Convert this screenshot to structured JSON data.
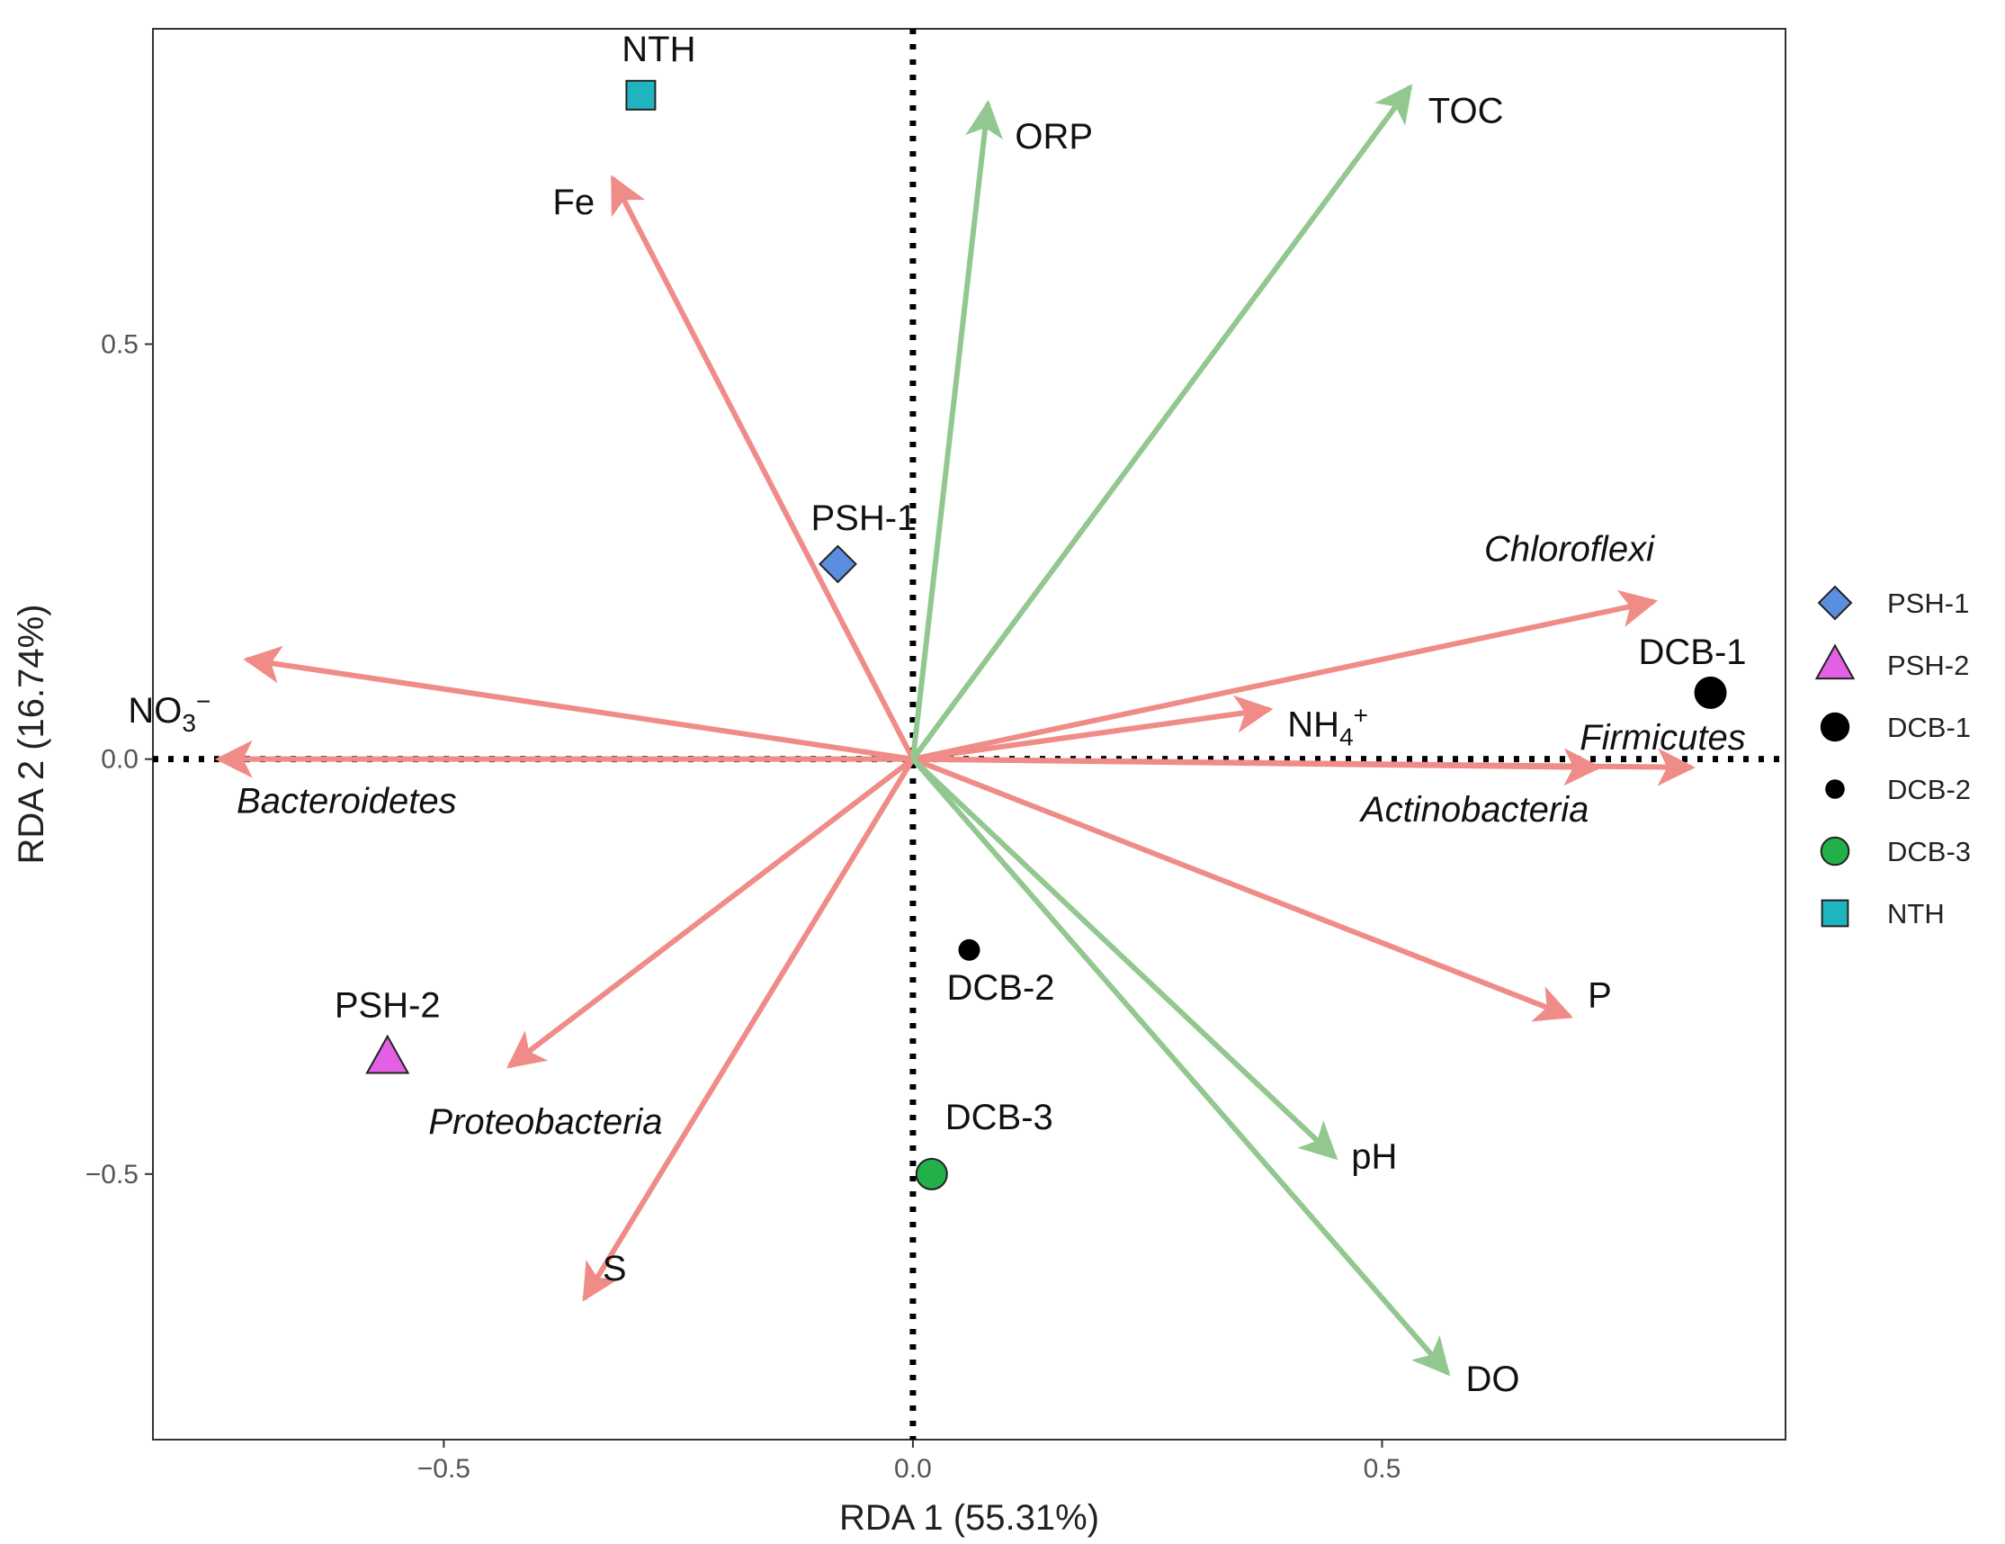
{
  "chart_data": {
    "type": "scatter",
    "subtype": "rda-biplot",
    "title": "",
    "xlabel": "RDA 1 (55.31%)",
    "ylabel": "RDA 2 (16.74%)",
    "xlim": [
      -0.81,
      0.93
    ],
    "ylim": [
      -0.82,
      0.88
    ],
    "x_ticks": [
      {
        "value": -0.5,
        "label": "−0.5"
      },
      {
        "value": 0.0,
        "label": "0.0"
      },
      {
        "value": 0.5,
        "label": "0.5"
      }
    ],
    "y_ticks": [
      {
        "value": 0.5,
        "label": "0.5"
      },
      {
        "value": 0.0,
        "label": "0.0"
      },
      {
        "value": -0.5,
        "label": "−0.5"
      }
    ],
    "grid": false,
    "reference_lines": {
      "x": 0,
      "y": 0,
      "style": "dotted"
    },
    "legend_position": "right",
    "colors": {
      "environmental_vector": "#92c88f",
      "taxa_vector": "#f08c87",
      "PSH-1": "#5b8de0",
      "PSH-2": "#e35fe3",
      "DCB-1": "#000000",
      "DCB-2": "#000000",
      "DCB-3": "#22b04a",
      "NTH": "#1fb5c0"
    },
    "environmental_vectors": [
      {
        "name": "ORP",
        "x": 0.08,
        "y": 0.79
      },
      {
        "name": "TOC",
        "x": 0.53,
        "y": 0.81
      },
      {
        "name": "pH",
        "x": 0.45,
        "y": -0.48
      },
      {
        "name": "DO",
        "x": 0.57,
        "y": -0.74
      }
    ],
    "taxa_vectors": [
      {
        "name": "Fe",
        "subscript": "",
        "superscript": "",
        "italic": false,
        "x": -0.32,
        "y": 0.7
      },
      {
        "name": "NO",
        "subscript": "3",
        "superscript": "−",
        "italic": false,
        "x": -0.71,
        "y": 0.12
      },
      {
        "name": "Bacteroidetes",
        "subscript": "",
        "superscript": "",
        "italic": true,
        "x": -0.74,
        "y": 0.0
      },
      {
        "name": "Proteobacteria",
        "subscript": "",
        "superscript": "",
        "italic": true,
        "x": -0.43,
        "y": -0.37
      },
      {
        "name": "S",
        "subscript": "",
        "superscript": "",
        "italic": false,
        "x": -0.35,
        "y": -0.65
      },
      {
        "name": "Chloroflexi",
        "subscript": "",
        "superscript": "",
        "italic": true,
        "x": 0.79,
        "y": 0.19
      },
      {
        "name": "NH",
        "subscript": "4",
        "superscript": "+",
        "italic": false,
        "x": 0.38,
        "y": 0.06
      },
      {
        "name": "Firmicutes",
        "subscript": "",
        "superscript": "",
        "italic": true,
        "x": 0.83,
        "y": -0.01
      },
      {
        "name": "Actinobacteria",
        "subscript": "",
        "superscript": "",
        "italic": true,
        "x": 0.73,
        "y": -0.01
      },
      {
        "name": "P",
        "subscript": "",
        "superscript": "",
        "italic": false,
        "x": 0.7,
        "y": -0.31
      }
    ],
    "sites": [
      {
        "name": "PSH-1",
        "x": -0.08,
        "y": 0.235,
        "shape": "diamond"
      },
      {
        "name": "PSH-2",
        "x": -0.56,
        "y": -0.36,
        "shape": "triangle"
      },
      {
        "name": "DCB-1",
        "x": 0.85,
        "y": 0.08,
        "shape": "circle-large"
      },
      {
        "name": "DCB-2",
        "x": 0.06,
        "y": -0.23,
        "shape": "circle-small"
      },
      {
        "name": "DCB-3",
        "x": 0.02,
        "y": -0.5,
        "shape": "circle-outlined"
      },
      {
        "name": "NTH",
        "x": -0.29,
        "y": 0.8,
        "shape": "square"
      }
    ],
    "legend": [
      "PSH-1",
      "PSH-2",
      "DCB-1",
      "DCB-2",
      "DCB-3",
      "NTH"
    ]
  }
}
